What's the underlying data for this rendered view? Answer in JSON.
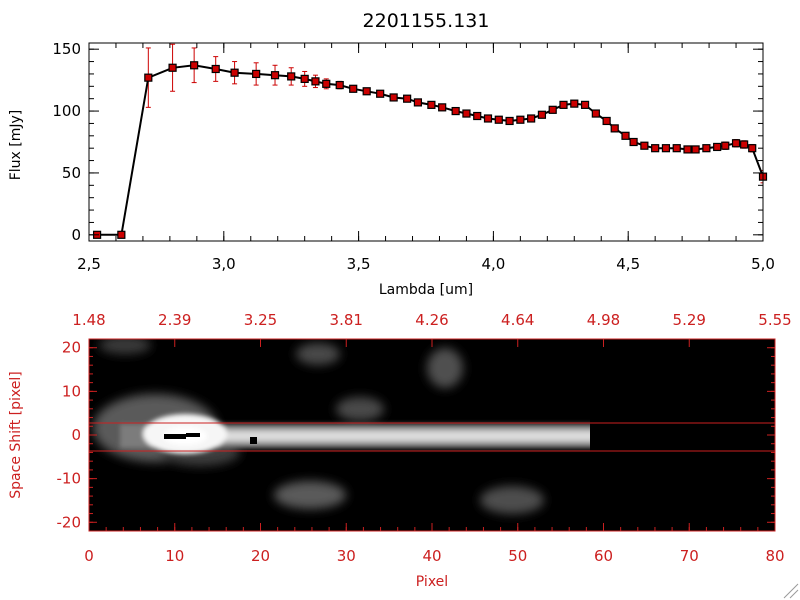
{
  "chart_data": [
    {
      "type": "line",
      "title": "2201155.131",
      "xlabel": "Lambda [um]",
      "ylabel": "Flux [mJy]",
      "xlim": [
        2.5,
        5.0
      ],
      "ylim": [
        -5,
        155
      ],
      "xticks": [
        "2.5",
        "3.0",
        "3.5",
        "4.0",
        "4.5",
        "5.0"
      ],
      "yticks": [
        "0",
        "50",
        "100",
        "150"
      ],
      "grid": false,
      "series": [
        {
          "x": [
            2.53,
            2.62,
            2.72,
            2.81,
            2.89,
            2.97,
            3.04,
            3.12,
            3.19,
            3.25,
            3.3,
            3.34,
            3.38,
            3.43,
            3.48,
            3.53,
            3.58,
            3.63,
            3.68,
            3.72,
            3.77,
            3.81,
            3.86,
            3.9,
            3.94,
            3.98,
            4.02,
            4.06,
            4.1,
            4.14,
            4.18,
            4.22,
            4.26,
            4.3,
            4.34,
            4.38,
            4.42,
            4.45,
            4.49,
            4.52,
            4.56,
            4.6,
            4.64,
            4.68,
            4.72,
            4.75,
            4.79,
            4.83,
            4.86,
            4.9,
            4.93,
            4.96,
            5.0
          ],
          "y": [
            0,
            0,
            127,
            135,
            137,
            134,
            131,
            130,
            129,
            128,
            126,
            124,
            122,
            121,
            118,
            116,
            114,
            111,
            110,
            107,
            105,
            103,
            100,
            98,
            96,
            94,
            93,
            92,
            93,
            94,
            97,
            101,
            105,
            106,
            105,
            98,
            92,
            86,
            80,
            75,
            72,
            70,
            70,
            70,
            69,
            69,
            70,
            71,
            72,
            74,
            73,
            70,
            47
          ],
          "yerr": [
            0,
            0,
            24,
            19,
            14,
            10,
            9,
            9,
            8,
            7,
            6,
            5,
            4,
            3,
            2,
            2,
            2,
            2,
            2,
            2,
            2,
            2,
            2,
            2,
            2,
            2,
            2,
            2,
            2,
            2,
            2,
            2,
            2,
            2,
            2,
            2,
            2,
            2,
            2,
            2,
            2,
            2,
            2,
            2,
            2,
            2,
            2,
            2,
            3,
            3,
            3,
            3,
            5
          ]
        }
      ],
      "colors": {
        "line": "#000000",
        "marker": "#cc0000",
        "errorbar": "#cc0000"
      }
    },
    {
      "type": "heatmap",
      "xlabel": "Pixel",
      "ylabel": "Space Shift [pixel]",
      "xlim": [
        0,
        80
      ],
      "ylim": [
        -22,
        22
      ],
      "xticks": [
        "0",
        "10",
        "20",
        "30",
        "40",
        "50",
        "60",
        "70",
        "80"
      ],
      "yticks": [
        "-20",
        "-10",
        "0",
        "10",
        "20"
      ],
      "top_xticks": [
        "1.48",
        "2.39",
        "3.25",
        "3.81",
        "4.26",
        "4.64",
        "4.98",
        "5.29",
        "5.55"
      ],
      "extraction_aperture": [
        -3,
        3
      ],
      "colors": {
        "axes": "#cc2020",
        "background": "#000000"
      }
    }
  ]
}
